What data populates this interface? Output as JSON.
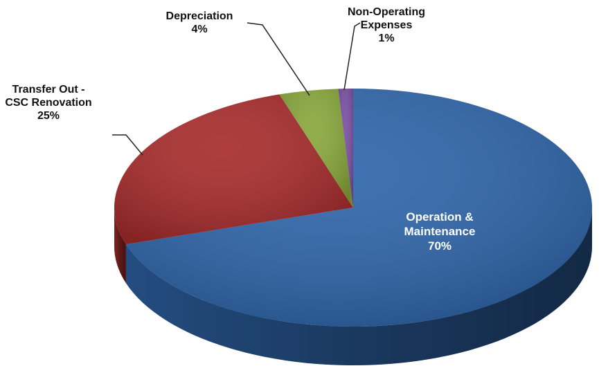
{
  "chart_data": {
    "type": "pie",
    "categories": [
      "Operation & Maintenance",
      "Transfer Out - CSC Renovation",
      "Depreciation",
      "Non-Operating Expenses"
    ],
    "values": [
      70,
      25,
      4,
      1
    ],
    "value_labels": [
      "70%",
      "25%",
      "4%",
      "1%"
    ],
    "colors": [
      "#2f66ab",
      "#a82c2c",
      "#89a83c",
      "#7b4fa3"
    ]
  }
}
